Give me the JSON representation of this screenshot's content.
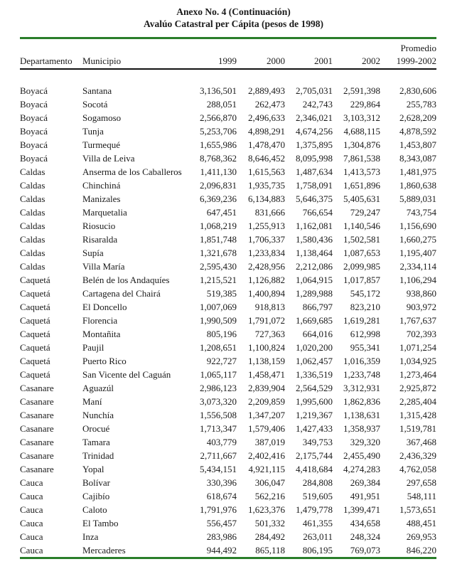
{
  "document": {
    "title_line1": "Anexo No. 4 (Continuación)",
    "title_line2": "Avalúo Catastral per Cápita (pesos de 1998)"
  },
  "table": {
    "promedio_label": "Promedio",
    "headers": {
      "departamento": "Departamento",
      "municipio": "Municipio",
      "y1999": "1999",
      "y2000": "2000",
      "y2001": "2001",
      "y2002": "2002",
      "promedio_range": "1999-2002"
    },
    "rows": [
      {
        "dept": "Boyacá",
        "mun": "Santana",
        "v1999": "3,136,501",
        "v2000": "2,889,493",
        "v2001": "2,705,031",
        "v2002": "2,591,398",
        "prom": "2,830,606"
      },
      {
        "dept": "Boyacá",
        "mun": "Socotá",
        "v1999": "288,051",
        "v2000": "262,473",
        "v2001": "242,743",
        "v2002": "229,864",
        "prom": "255,783"
      },
      {
        "dept": "Boyacá",
        "mun": "Sogamoso",
        "v1999": "2,566,870",
        "v2000": "2,496,633",
        "v2001": "2,346,021",
        "v2002": "3,103,312",
        "prom": "2,628,209"
      },
      {
        "dept": "Boyacá",
        "mun": "Tunja",
        "v1999": "5,253,706",
        "v2000": "4,898,291",
        "v2001": "4,674,256",
        "v2002": "4,688,115",
        "prom": "4,878,592"
      },
      {
        "dept": "Boyacá",
        "mun": "Turmequé",
        "v1999": "1,655,986",
        "v2000": "1,478,470",
        "v2001": "1,375,895",
        "v2002": "1,304,876",
        "prom": "1,453,807"
      },
      {
        "dept": "Boyacá",
        "mun": "Villa de Leiva",
        "v1999": "8,768,362",
        "v2000": "8,646,452",
        "v2001": "8,095,998",
        "v2002": "7,861,538",
        "prom": "8,343,087"
      },
      {
        "dept": "Caldas",
        "mun": "Anserma de los Caballeros",
        "v1999": "1,411,130",
        "v2000": "1,615,563",
        "v2001": "1,487,634",
        "v2002": "1,413,573",
        "prom": "1,481,975"
      },
      {
        "dept": "Caldas",
        "mun": "Chinchiná",
        "v1999": "2,096,831",
        "v2000": "1,935,735",
        "v2001": "1,758,091",
        "v2002": "1,651,896",
        "prom": "1,860,638"
      },
      {
        "dept": "Caldas",
        "mun": "Manizales",
        "v1999": "6,369,236",
        "v2000": "6,134,883",
        "v2001": "5,646,375",
        "v2002": "5,405,631",
        "prom": "5,889,031"
      },
      {
        "dept": "Caldas",
        "mun": "Marquetalia",
        "v1999": "647,451",
        "v2000": "831,666",
        "v2001": "766,654",
        "v2002": "729,247",
        "prom": "743,754"
      },
      {
        "dept": "Caldas",
        "mun": "Riosucio",
        "v1999": "1,068,219",
        "v2000": "1,255,913",
        "v2001": "1,162,081",
        "v2002": "1,140,546",
        "prom": "1,156,690"
      },
      {
        "dept": "Caldas",
        "mun": "Risaralda",
        "v1999": "1,851,748",
        "v2000": "1,706,337",
        "v2001": "1,580,436",
        "v2002": "1,502,581",
        "prom": "1,660,275"
      },
      {
        "dept": "Caldas",
        "mun": "Supía",
        "v1999": "1,321,678",
        "v2000": "1,233,834",
        "v2001": "1,138,464",
        "v2002": "1,087,653",
        "prom": "1,195,407"
      },
      {
        "dept": "Caldas",
        "mun": "Villa María",
        "v1999": "2,595,430",
        "v2000": "2,428,956",
        "v2001": "2,212,086",
        "v2002": "2,099,985",
        "prom": "2,334,114"
      },
      {
        "dept": "Caquetá",
        "mun": "Belén de los Andaquíes",
        "v1999": "1,215,521",
        "v2000": "1,126,882",
        "v2001": "1,064,915",
        "v2002": "1,017,857",
        "prom": "1,106,294"
      },
      {
        "dept": "Caquetá",
        "mun": "Cartagena del Chairá",
        "v1999": "519,385",
        "v2000": "1,400,894",
        "v2001": "1,289,988",
        "v2002": "545,172",
        "prom": "938,860"
      },
      {
        "dept": "Caquetá",
        "mun": "El Doncello",
        "v1999": "1,007,069",
        "v2000": "918,813",
        "v2001": "866,797",
        "v2002": "823,210",
        "prom": "903,972"
      },
      {
        "dept": "Caquetá",
        "mun": "Florencia",
        "v1999": "1,990,509",
        "v2000": "1,791,072",
        "v2001": "1,669,685",
        "v2002": "1,619,281",
        "prom": "1,767,637"
      },
      {
        "dept": "Caquetá",
        "mun": "Montañita",
        "v1999": "805,196",
        "v2000": "727,363",
        "v2001": "664,016",
        "v2002": "612,998",
        "prom": "702,393"
      },
      {
        "dept": "Caquetá",
        "mun": "Paujil",
        "v1999": "1,208,651",
        "v2000": "1,100,824",
        "v2001": "1,020,200",
        "v2002": "955,341",
        "prom": "1,071,254"
      },
      {
        "dept": "Caquetá",
        "mun": "Puerto Rico",
        "v1999": "922,727",
        "v2000": "1,138,159",
        "v2001": "1,062,457",
        "v2002": "1,016,359",
        "prom": "1,034,925"
      },
      {
        "dept": "Caquetá",
        "mun": "San Vicente del Caguán",
        "v1999": "1,065,117",
        "v2000": "1,458,471",
        "v2001": "1,336,519",
        "v2002": "1,233,748",
        "prom": "1,273,464"
      },
      {
        "dept": "Casanare",
        "mun": "Aguazúl",
        "v1999": "2,986,123",
        "v2000": "2,839,904",
        "v2001": "2,564,529",
        "v2002": "3,312,931",
        "prom": "2,925,872"
      },
      {
        "dept": "Casanare",
        "mun": "Maní",
        "v1999": "3,073,320",
        "v2000": "2,209,859",
        "v2001": "1,995,600",
        "v2002": "1,862,836",
        "prom": "2,285,404"
      },
      {
        "dept": "Casanare",
        "mun": "Nunchía",
        "v1999": "1,556,508",
        "v2000": "1,347,207",
        "v2001": "1,219,367",
        "v2002": "1,138,631",
        "prom": "1,315,428"
      },
      {
        "dept": "Casanare",
        "mun": "Orocué",
        "v1999": "1,713,347",
        "v2000": "1,579,406",
        "v2001": "1,427,433",
        "v2002": "1,358,937",
        "prom": "1,519,781"
      },
      {
        "dept": "Casanare",
        "mun": "Tamara",
        "v1999": "403,779",
        "v2000": "387,019",
        "v2001": "349,753",
        "v2002": "329,320",
        "prom": "367,468"
      },
      {
        "dept": "Casanare",
        "mun": "Trinidad",
        "v1999": "2,711,667",
        "v2000": "2,402,416",
        "v2001": "2,175,744",
        "v2002": "2,455,490",
        "prom": "2,436,329"
      },
      {
        "dept": "Casanare",
        "mun": "Yopal",
        "v1999": "5,434,151",
        "v2000": "4,921,115",
        "v2001": "4,418,684",
        "v2002": "4,274,283",
        "prom": "4,762,058"
      },
      {
        "dept": "Cauca",
        "mun": "Bolívar",
        "v1999": "330,396",
        "v2000": "306,047",
        "v2001": "284,808",
        "v2002": "269,384",
        "prom": "297,658"
      },
      {
        "dept": "Cauca",
        "mun": "Cajibío",
        "v1999": "618,674",
        "v2000": "562,216",
        "v2001": "519,605",
        "v2002": "491,951",
        "prom": "548,111"
      },
      {
        "dept": "Cauca",
        "mun": "Caloto",
        "v1999": "1,791,976",
        "v2000": "1,623,376",
        "v2001": "1,479,778",
        "v2002": "1,399,471",
        "prom": "1,573,651"
      },
      {
        "dept": "Cauca",
        "mun": "El Tambo",
        "v1999": "556,457",
        "v2000": "501,332",
        "v2001": "461,355",
        "v2002": "434,658",
        "prom": "488,451"
      },
      {
        "dept": "Cauca",
        "mun": "Inza",
        "v1999": "283,986",
        "v2000": "284,492",
        "v2001": "263,011",
        "v2002": "248,324",
        "prom": "269,953"
      },
      {
        "dept": "Cauca",
        "mun": "Mercaderes",
        "v1999": "944,492",
        "v2000": "865,118",
        "v2001": "806,195",
        "v2002": "769,073",
        "prom": "846,220"
      }
    ]
  },
  "colors": {
    "rule_green": "#2a7e2a",
    "rule_black": "#111111"
  }
}
